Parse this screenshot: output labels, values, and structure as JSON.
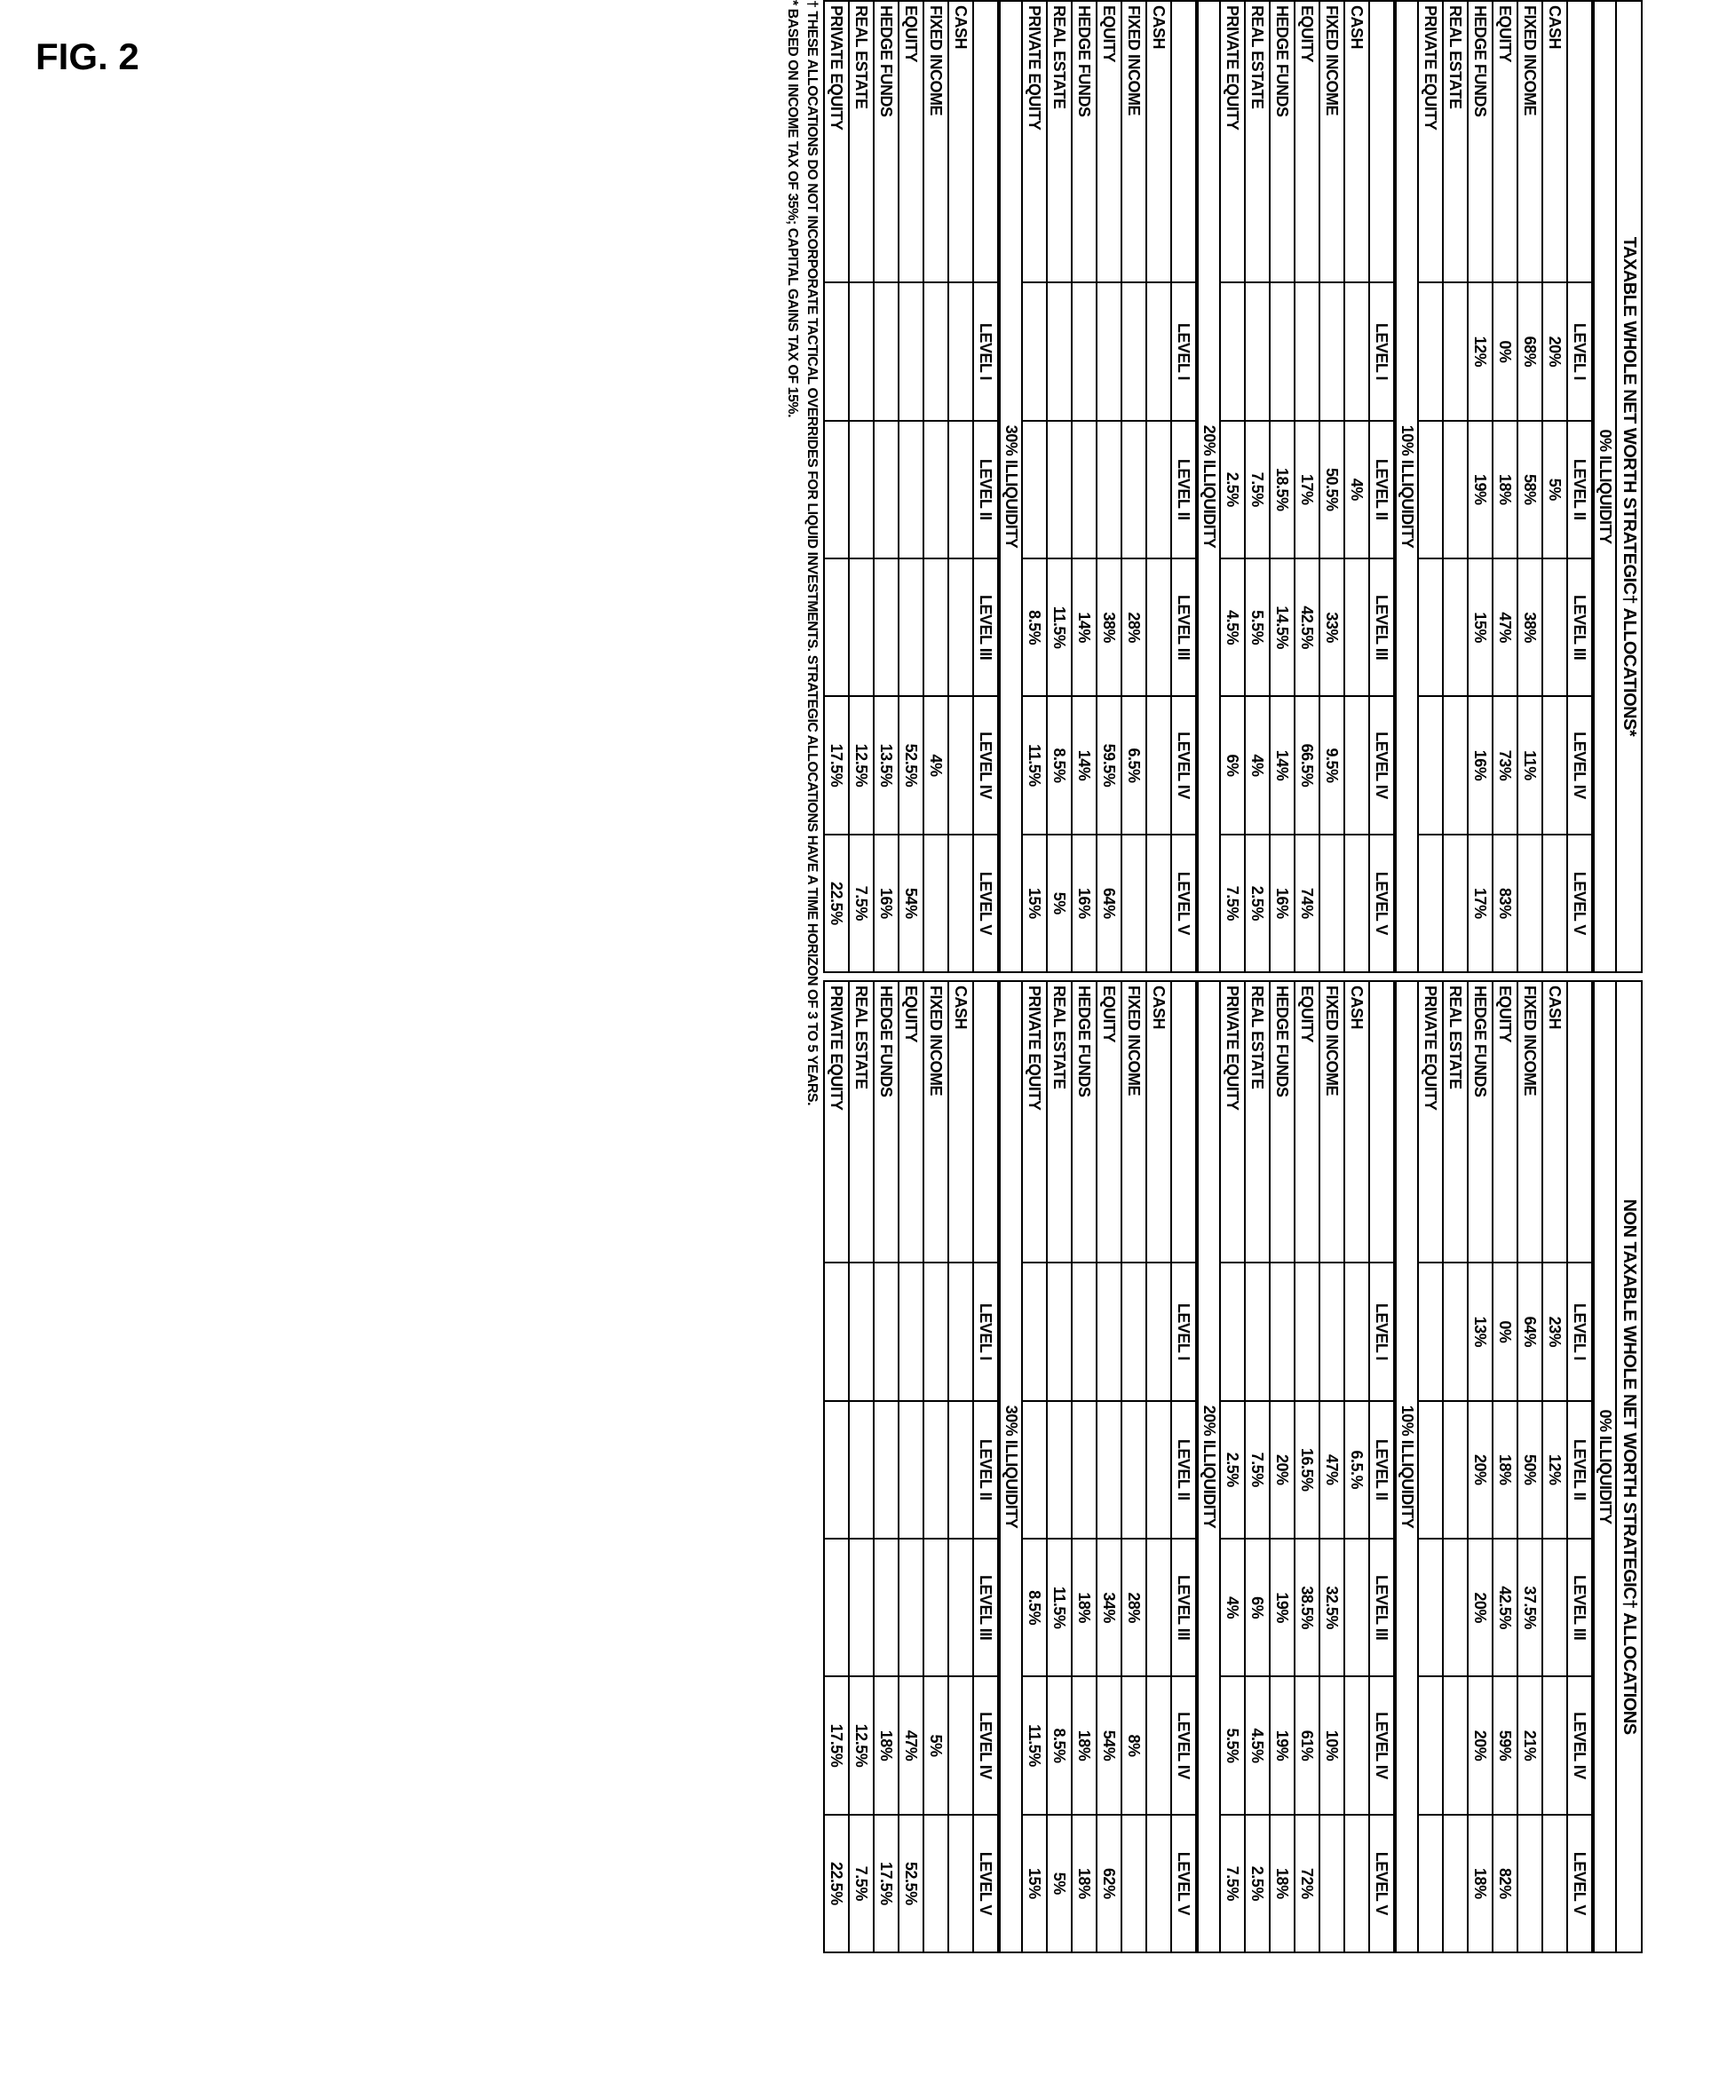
{
  "figureLabel": "FIG. 2",
  "panels": [
    {
      "title": "TAXABLE WHOLE NET WORTH STRATEGIC† ALLOCATIONS*",
      "sections": [
        {
          "header": "0% ILLIQUIDITY",
          "levels": [
            "LEVEL I",
            "LEVEL II",
            "LEVEL III",
            "LEVEL IV",
            "LEVEL V"
          ],
          "rows": [
            {
              "label": "CASH",
              "v": [
                "20%",
                "5%",
                "",
                "",
                ""
              ]
            },
            {
              "label": "FIXED INCOME",
              "v": [
                "68%",
                "58%",
                "38%",
                "11%",
                ""
              ]
            },
            {
              "label": "EQUITY",
              "v": [
                "0%",
                "18%",
                "47%",
                "73%",
                "83%"
              ]
            },
            {
              "label": "HEDGE FUNDS",
              "v": [
                "12%",
                "19%",
                "15%",
                "16%",
                "17%"
              ]
            },
            {
              "label": "REAL ESTATE",
              "v": [
                "",
                "",
                "",
                "",
                ""
              ]
            },
            {
              "label": "PRIVATE EQUITY",
              "v": [
                "",
                "",
                "",
                "",
                ""
              ]
            }
          ]
        },
        {
          "header": "10% ILLIQUIDITY",
          "levels": [
            "LEVEL I",
            "LEVEL II",
            "LEVEL III",
            "LEVEL IV",
            "LEVEL V"
          ],
          "rows": [
            {
              "label": "CASH",
              "v": [
                "",
                "4%",
                "",
                "",
                ""
              ]
            },
            {
              "label": "FIXED INCOME",
              "v": [
                "",
                "50.5%",
                "33%",
                "9.5%",
                ""
              ]
            },
            {
              "label": "EQUITY",
              "v": [
                "",
                "17%",
                "42.5%",
                "66.5%",
                "74%"
              ]
            },
            {
              "label": "HEDGE FUNDS",
              "v": [
                "",
                "18.5%",
                "14.5%",
                "14%",
                "16%"
              ]
            },
            {
              "label": "REAL ESTATE",
              "v": [
                "",
                "7.5%",
                "5.5%",
                "4%",
                "2.5%"
              ]
            },
            {
              "label": "PRIVATE EQUITY",
              "v": [
                "",
                "2.5%",
                "4.5%",
                "6%",
                "7.5%"
              ]
            }
          ]
        },
        {
          "header": "20% ILLIQUIDITY",
          "levels": [
            "LEVEL I",
            "LEVEL II",
            "LEVEL III",
            "LEVEL IV",
            "LEVEL V"
          ],
          "rows": [
            {
              "label": "CASH",
              "v": [
                "",
                "",
                "",
                "",
                ""
              ]
            },
            {
              "label": "FIXED INCOME",
              "v": [
                "",
                "",
                "28%",
                "6.5%",
                ""
              ]
            },
            {
              "label": "EQUITY",
              "v": [
                "",
                "",
                "38%",
                "59.5%",
                "64%"
              ]
            },
            {
              "label": "HEDGE FUNDS",
              "v": [
                "",
                "",
                "14%",
                "14%",
                "16%"
              ]
            },
            {
              "label": "REAL ESTATE",
              "v": [
                "",
                "",
                "11.5%",
                "8.5%",
                "5%"
              ]
            },
            {
              "label": "PRIVATE EQUITY",
              "v": [
                "",
                "",
                "8.5%",
                "11.5%",
                "15%"
              ]
            }
          ]
        },
        {
          "header": "30% ILLIQUIDITY",
          "levels": [
            "LEVEL I",
            "LEVEL II",
            "LEVEL III",
            "LEVEL IV",
            "LEVEL V"
          ],
          "rows": [
            {
              "label": "CASH",
              "v": [
                "",
                "",
                "",
                "",
                ""
              ]
            },
            {
              "label": "FIXED INCOME",
              "v": [
                "",
                "",
                "",
                "4%",
                ""
              ]
            },
            {
              "label": "EQUITY",
              "v": [
                "",
                "",
                "",
                "52.5%",
                "54%"
              ]
            },
            {
              "label": "HEDGE FUNDS",
              "v": [
                "",
                "",
                "",
                "13.5%",
                "16%"
              ]
            },
            {
              "label": "REAL ESTATE",
              "v": [
                "",
                "",
                "",
                "12.5%",
                "7.5%"
              ]
            },
            {
              "label": "PRIVATE EQUITY",
              "v": [
                "",
                "",
                "",
                "17.5%",
                "22.5%"
              ]
            }
          ]
        }
      ]
    },
    {
      "title": "NON TAXABLE WHOLE NET WORTH STRATEGIC† ALLOCATIONS",
      "sections": [
        {
          "header": "0% ILLIQUIDITY",
          "levels": [
            "LEVEL I",
            "LEVEL II",
            "LEVEL III",
            "LEVEL IV",
            "LEVEL V"
          ],
          "rows": [
            {
              "label": "CASH",
              "v": [
                "23%",
                "12%",
                "",
                "",
                ""
              ]
            },
            {
              "label": "FIXED INCOME",
              "v": [
                "64%",
                "50%",
                "37.5%",
                "21%",
                ""
              ]
            },
            {
              "label": "EQUITY",
              "v": [
                "0%",
                "18%",
                "42.5%",
                "59%",
                "82%"
              ]
            },
            {
              "label": "HEDGE FUNDS",
              "v": [
                "13%",
                "20%",
                "20%",
                "20%",
                "18%"
              ]
            },
            {
              "label": "REAL ESTATE",
              "v": [
                "",
                "",
                "",
                "",
                ""
              ]
            },
            {
              "label": "PRIVATE EQUITY",
              "v": [
                "",
                "",
                "",
                "",
                ""
              ]
            }
          ]
        },
        {
          "header": "10% ILLIQUIDITY",
          "levels": [
            "LEVEL I",
            "LEVEL II",
            "LEVEL III",
            "LEVEL IV",
            "LEVEL V"
          ],
          "rows": [
            {
              "label": "CASH",
              "v": [
                "",
                "6.5.%",
                "",
                "",
                ""
              ]
            },
            {
              "label": "FIXED INCOME",
              "v": [
                "",
                "47%",
                "32.5%",
                "10%",
                ""
              ]
            },
            {
              "label": "EQUITY",
              "v": [
                "",
                "16.5%",
                "38.5%",
                "61%",
                "72%"
              ]
            },
            {
              "label": "HEDGE FUNDS",
              "v": [
                "",
                "20%",
                "19%",
                "19%",
                "18%"
              ]
            },
            {
              "label": "REAL ESTATE",
              "v": [
                "",
                "7.5%",
                "6%",
                "4.5%",
                "2.5%"
              ]
            },
            {
              "label": "PRIVATE EQUITY",
              "v": [
                "",
                "2.5%",
                "4%",
                "5.5%",
                "7.5%"
              ]
            }
          ]
        },
        {
          "header": "20% ILLIQUIDITY",
          "levels": [
            "LEVEL I",
            "LEVEL II",
            "LEVEL III",
            "LEVEL IV",
            "LEVEL V"
          ],
          "rows": [
            {
              "label": "CASH",
              "v": [
                "",
                "",
                "",
                "",
                ""
              ]
            },
            {
              "label": "FIXED INCOME",
              "v": [
                "",
                "",
                "28%",
                "8%",
                ""
              ]
            },
            {
              "label": "EQUITY",
              "v": [
                "",
                "",
                "34%",
                "54%",
                "62%"
              ]
            },
            {
              "label": "HEDGE FUNDS",
              "v": [
                "",
                "",
                "18%",
                "18%",
                "18%"
              ]
            },
            {
              "label": "REAL ESTATE",
              "v": [
                "",
                "",
                "11.5%",
                "8.5%",
                "5%"
              ]
            },
            {
              "label": "PRIVATE EQUITY",
              "v": [
                "",
                "",
                "8.5%",
                "11.5%",
                "15%"
              ]
            }
          ]
        },
        {
          "header": "30% ILLIQUIDITY",
          "levels": [
            "LEVEL I",
            "LEVEL II",
            "LEVEL III",
            "LEVEL IV",
            "LEVEL V"
          ],
          "rows": [
            {
              "label": "CASH",
              "v": [
                "",
                "",
                "",
                "",
                ""
              ]
            },
            {
              "label": "FIXED INCOME",
              "v": [
                "",
                "",
                "",
                "5%",
                ""
              ]
            },
            {
              "label": "EQUITY",
              "v": [
                "",
                "",
                "",
                "47%",
                "52.5%"
              ]
            },
            {
              "label": "HEDGE FUNDS",
              "v": [
                "",
                "",
                "",
                "18%",
                "17.5%"
              ]
            },
            {
              "label": "REAL ESTATE",
              "v": [
                "",
                "",
                "",
                "12.5%",
                "7.5%"
              ]
            },
            {
              "label": "PRIVATE EQUITY",
              "v": [
                "",
                "",
                "",
                "17.5%",
                "22.5%"
              ]
            }
          ]
        }
      ]
    }
  ],
  "footnotes": [
    "† THESE ALLOCATIONS DO NOT INCORPORATE TACTICAL OVERRIDES FOR LIQUID INVESTMENTS. STRATEGIC ALLOCATIONS HAVE A TIME HORIZON OF 3 TO 5 YEARS.",
    "* BASED ON INCOME TAX OF 35%; CAPITAL GAINS TAX OF 15%."
  ],
  "style": {
    "background": "#ffffff",
    "border": "#000000",
    "font": "Arial Narrow",
    "fontSize": 18
  }
}
